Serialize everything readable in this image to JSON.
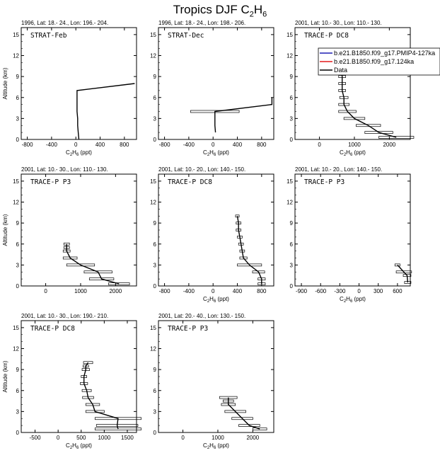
{
  "page": {
    "title": "Tropics DJF C",
    "title_sub": "2",
    "title_tail": "H",
    "title_sub2": "6"
  },
  "colors": {
    "axis": "#000000",
    "data": "#000000",
    "legend_blue": "#1f1fb4",
    "legend_red": "#e31a1c"
  },
  "legend": {
    "items": [
      {
        "label": "b.e21.B1850.f09_g17.PMIP4-127ka",
        "color": "#1f1fb4"
      },
      {
        "label": "b.e21.B1850.f09_g17.124ka",
        "color": "#e31a1c"
      },
      {
        "label": "Data",
        "color": "#000000"
      }
    ]
  },
  "chart_data": [
    {
      "type": "line",
      "header": "1996, Lat: 18.- 24., Lon: 196.- 204.",
      "label": "STRAT-Feb",
      "xlabel": "C2H6 (ppt)",
      "ylabel": "Altitude (km)",
      "xlim": [
        -900,
        1000
      ],
      "ylim": [
        0,
        16
      ],
      "xticks": [
        -800,
        -400,
        0,
        400,
        800
      ],
      "yticks": [
        0,
        3,
        6,
        9,
        12,
        15
      ],
      "x": [
        50,
        40,
        30,
        30,
        20,
        20,
        970
      ],
      "y": [
        0,
        1,
        2,
        3,
        4,
        7,
        8
      ],
      "err": [
        0,
        0,
        0,
        0,
        0,
        0,
        0
      ]
    },
    {
      "type": "line",
      "header": "1996, Lat: 18.- 24., Lon: 198.- 206.",
      "label": "STRAT-Dec",
      "xlabel": "C2H6 (ppt)",
      "ylabel": "",
      "xlim": [
        -900,
        1000
      ],
      "ylim": [
        0,
        16
      ],
      "xticks": [
        -800,
        -400,
        0,
        400,
        800
      ],
      "yticks": [
        0,
        3,
        6,
        9,
        12,
        15
      ],
      "x": [
        40,
        30,
        30,
        970,
        970
      ],
      "y": [
        1,
        2,
        4,
        5,
        6
      ],
      "err": [
        0,
        0,
        400,
        0,
        0
      ]
    },
    {
      "type": "line",
      "header": "2001, Lat: 10.- 30., Lon: 110.- 130.",
      "label": "TRACE-P DC8",
      "xlabel": "C2H6 (ppt)",
      "ylabel": "",
      "xlim": [
        -700,
        2600
      ],
      "ylim": [
        0,
        16
      ],
      "xticks": [
        0,
        1000,
        2000
      ],
      "yticks": [
        0,
        3,
        6,
        9,
        12,
        15
      ],
      "x": [
        2200,
        1700,
        1400,
        1000,
        800,
        700,
        700,
        650,
        650,
        650,
        620,
        600,
        650
      ],
      "y": [
        0.3,
        1,
        2,
        3,
        4,
        5,
        6,
        7,
        8,
        9,
        10,
        11,
        12
      ],
      "err": [
        500,
        400,
        350,
        300,
        250,
        150,
        120,
        100,
        100,
        100,
        80,
        80,
        80
      ]
    },
    {
      "type": "line",
      "header": "2001, Lat: 10.- 30., Lon: 110.- 130.",
      "label": "TRACE-P P3",
      "xlabel": "",
      "ylabel": "Altitude (km)",
      "xlim": [
        -700,
        2600
      ],
      "ylim": [
        0,
        16
      ],
      "xticks": [
        0,
        1000,
        2000
      ],
      "yticks": [
        0,
        3,
        6,
        9,
        12,
        15
      ],
      "x": [
        2100,
        1600,
        1500,
        1000,
        700,
        600,
        600,
        600
      ],
      "y": [
        0.3,
        1,
        2,
        3,
        4,
        5,
        5.5,
        6
      ],
      "err": [
        300,
        350,
        400,
        400,
        200,
        100,
        80,
        80
      ]
    },
    {
      "type": "line",
      "header": "2001, Lat: 10.- 20., Lon: 140.- 150.",
      "label": "TRACE-P DC8",
      "xlabel": "C2H6 (ppt)",
      "ylabel": "",
      "xlim": [
        -900,
        1000
      ],
      "ylim": [
        0,
        16
      ],
      "xticks": [
        -800,
        -400,
        0,
        400,
        800
      ],
      "yticks": [
        0,
        3,
        6,
        9,
        12,
        15
      ],
      "x": [
        800,
        800,
        750,
        600,
        500,
        480,
        460,
        440,
        420,
        420,
        400
      ],
      "y": [
        0.3,
        1,
        2,
        3,
        4,
        5,
        6,
        7,
        8,
        9,
        10
      ],
      "err": [
        60,
        60,
        100,
        200,
        60,
        40,
        40,
        40,
        40,
        40,
        30
      ]
    },
    {
      "type": "line",
      "header": "2001, Lat: 10.- 20., Lon: 140.- 150.",
      "label": "TRACE-P P3",
      "xlabel": "C2H6 (ppt)",
      "ylabel": "",
      "xlim": [
        -1000,
        800
      ],
      "ylim": [
        0,
        16
      ],
      "xticks": [
        -900,
        -600,
        -300,
        0,
        300,
        600
      ],
      "yticks": [
        0,
        3,
        6,
        9,
        12,
        15
      ],
      "x": [
        760,
        750,
        700,
        600
      ],
      "y": [
        0.5,
        1.5,
        2,
        3
      ],
      "err": [
        50,
        60,
        120,
        40
      ]
    },
    {
      "type": "line",
      "header": "2001, Lat: 10.- 30., Lon: 190.- 210.",
      "label": "TRACE-P DC8",
      "xlabel": "C2H6 (ppt)",
      "ylabel": "Altitude (km)",
      "xlim": [
        -800,
        1700
      ],
      "ylim": [
        0,
        16
      ],
      "xticks": [
        -500,
        0,
        500,
        1000,
        1500
      ],
      "yticks": [
        0,
        3,
        6,
        9,
        12,
        15
      ],
      "x": [
        1300,
        1280,
        1300,
        800,
        750,
        650,
        620,
        560,
        560,
        600,
        600,
        650
      ],
      "y": [
        0.5,
        1,
        2,
        3,
        4,
        5,
        6,
        7,
        8,
        9,
        9.5,
        10
      ],
      "err": [
        500,
        450,
        500,
        200,
        150,
        120,
        100,
        80,
        60,
        80,
        60,
        100
      ]
    },
    {
      "type": "line",
      "header": "2001, Lat: 20.- 40., Lon: 130.- 150.",
      "label": "TRACE-P P3",
      "xlabel": "C2H6 (ppt)",
      "ylabel": "",
      "xlim": [
        -700,
        2600
      ],
      "ylim": [
        0,
        16
      ],
      "xticks": [
        0,
        1000,
        2000
      ],
      "yticks": [
        0,
        3,
        6,
        9,
        12,
        15
      ],
      "x": [
        2200,
        1900,
        1700,
        1500,
        1300,
        1300,
        1300
      ],
      "y": [
        0.5,
        1,
        2,
        3,
        4,
        4.5,
        5
      ],
      "err": [
        200,
        300,
        300,
        300,
        200,
        150,
        250
      ]
    }
  ]
}
